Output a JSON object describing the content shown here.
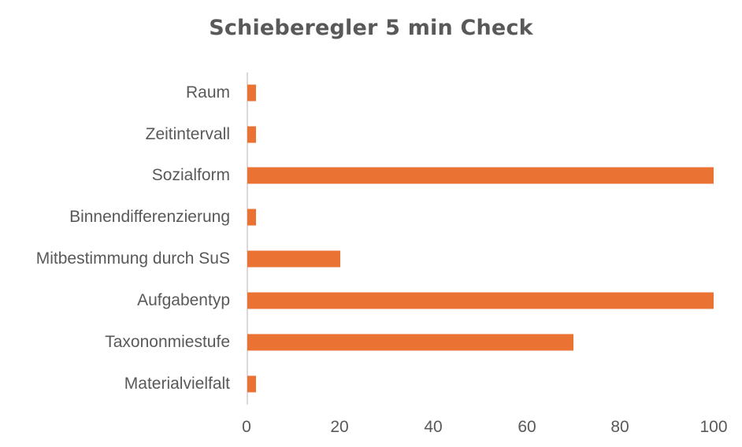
{
  "chart_data": {
    "type": "bar",
    "orientation": "horizontal",
    "title": "Schieberegler 5 min Check",
    "xlabel": "",
    "ylabel": "",
    "categories": [
      "Raum",
      "Zeitintervall",
      "Sozialform",
      "Binnendifferenzierung",
      "Mitbestimmung durch SuS",
      "Aufgabentyp",
      "Taxononmiestufe",
      "Materialvielfalt"
    ],
    "values": [
      2,
      2,
      100,
      2,
      20,
      100,
      70,
      2
    ],
    "xlim": [
      0,
      100
    ],
    "xticks": [
      "0",
      "20",
      "40",
      "60",
      "80",
      "100"
    ],
    "grid": false,
    "legend": null,
    "bar_color": "#ea7233"
  }
}
